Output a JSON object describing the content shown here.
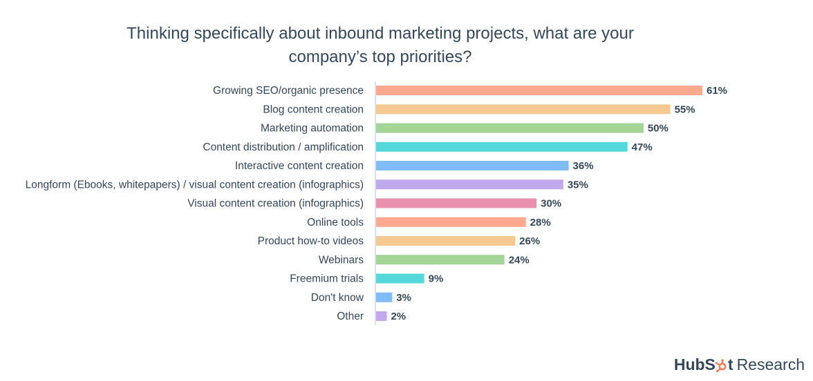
{
  "title_line1": "Thinking specifically about inbound marketing projects, what are your",
  "title_line2": "company’s top priorities?",
  "logo": {
    "text": "HubSpot Research",
    "brand_part1": "HubS",
    "brand_part2": "t",
    "research": "Research",
    "accent_color": "#ff7a59"
  },
  "chart_data": {
    "type": "bar",
    "orientation": "horizontal",
    "title": "Thinking specifically about inbound marketing projects, what are your company’s top priorities?",
    "categories": [
      "Growing SEO/organic presence",
      "Blog content creation",
      "Marketing automation",
      "Content distribution / amplification",
      "Interactive content creation",
      "Longform (Ebooks, whitepapers) / visual content creation (infographics)",
      "Visual content creation (infographics)",
      "Online tools",
      "Product how-to videos",
      "Webinars",
      "Freemium trials",
      "Don't know",
      "Other"
    ],
    "values": [
      61,
      55,
      50,
      47,
      36,
      35,
      30,
      28,
      26,
      24,
      9,
      3,
      2
    ],
    "value_labels": [
      "61%",
      "55%",
      "50%",
      "47%",
      "36%",
      "35%",
      "30%",
      "28%",
      "26%",
      "24%",
      "9%",
      "3%",
      "2%"
    ],
    "colors": [
      "#fca98f",
      "#f6c993",
      "#a3d597",
      "#55d8d9",
      "#7fbcf9",
      "#c1a9ee",
      "#ea8fad",
      "#fca98f",
      "#f6c993",
      "#a3d597",
      "#55d8d9",
      "#7fbcf9",
      "#c1a9ee"
    ],
    "xlim": [
      0,
      61
    ],
    "xlabel": "",
    "ylabel": "",
    "grid": false,
    "legend": "none"
  }
}
